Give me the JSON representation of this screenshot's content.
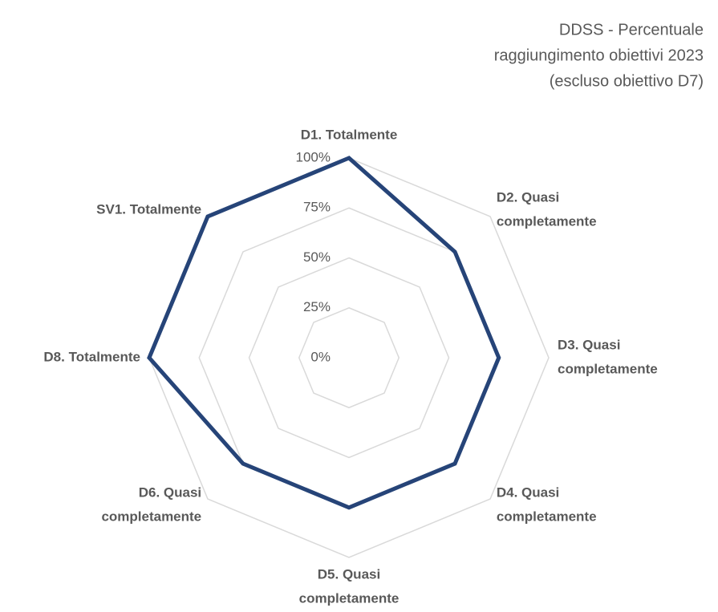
{
  "chart_data": {
    "type": "radar",
    "title": [
      "DDSS - Percentuale",
      "raggiungimento obiettivi 2023",
      "(escluso obiettivo D7)"
    ],
    "categories": [
      [
        "D1. Totalmente"
      ],
      [
        "D2.  Quasi",
        "completamente"
      ],
      [
        "D3.  Quasi",
        "completamente"
      ],
      [
        "D4.  Quasi",
        "completamente"
      ],
      [
        "D5.  Quasi",
        "completamente"
      ],
      [
        "D6.  Quasi",
        "completamente"
      ],
      [
        "D8.  Totalmente"
      ],
      [
        "SV1.  Totalmente"
      ]
    ],
    "series": [
      {
        "name": "Percentuale",
        "color": "#264478",
        "values": [
          100,
          75,
          75,
          75,
          75,
          75,
          100,
          100
        ]
      }
    ],
    "ylim": [
      0,
      100
    ],
    "yticks": [
      {
        "value": 0,
        "label": "0%"
      },
      {
        "value": 25,
        "label": "25%"
      },
      {
        "value": 50,
        "label": "50%"
      },
      {
        "value": 75,
        "label": "75%"
      },
      {
        "value": 100,
        "label": "100%"
      }
    ],
    "grid": true
  }
}
